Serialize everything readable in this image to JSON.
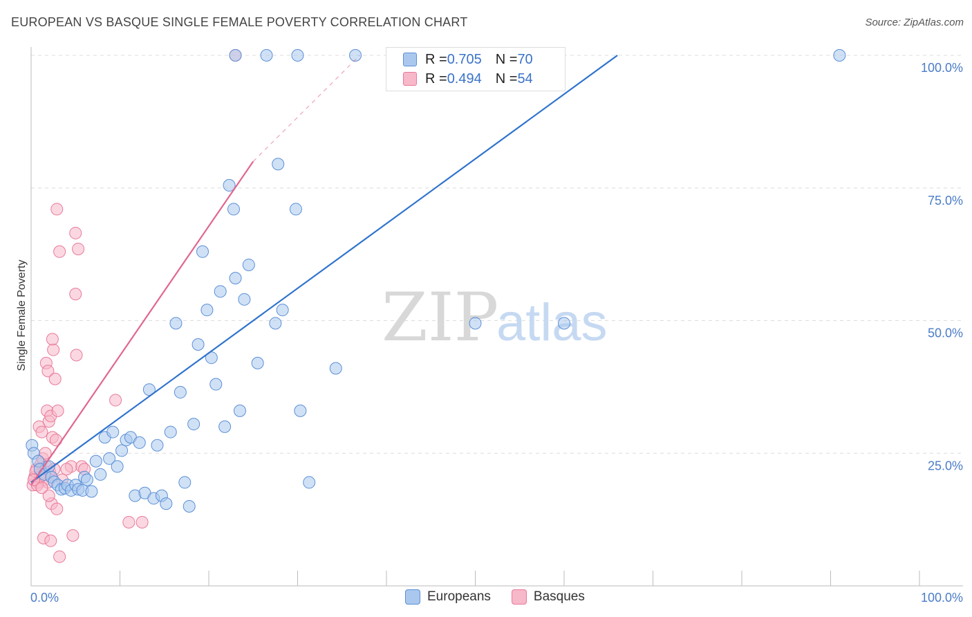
{
  "title": "EUROPEAN VS BASQUE SINGLE FEMALE POVERTY CORRELATION CHART",
  "source": "Source: ZipAtlas.com",
  "watermark": {
    "zip": "ZIP",
    "atlas": "atlas"
  },
  "colors": {
    "europeans_fill": "#aac8ee",
    "europeans_stroke": "#5b8fd6",
    "europeans_line": "#2f73cc",
    "basques_fill": "#f7b8c9",
    "basques_stroke": "#e8799a",
    "basques_line": "#e06690",
    "tick_label": "#4a7cc7",
    "grid": "#dcdcdc"
  },
  "legend": {
    "europeans": {
      "r_label": "R = ",
      "r_value": "0.705",
      "n_label": "N = ",
      "n_value": "70"
    },
    "basques": {
      "r_label": "R = ",
      "r_value": "0.494",
      "n_label": "N = ",
      "n_value": "54"
    }
  },
  "bottom_legend": {
    "europeans": "Europeans",
    "basques": "Basques"
  },
  "chart_data": {
    "type": "scatter",
    "title": "EUROPEAN VS BASQUE SINGLE FEMALE POVERTY CORRELATION CHART",
    "xlabel": "",
    "ylabel": "Single Female Poverty",
    "xlim": [
      0,
      100
    ],
    "ylim": [
      0,
      100
    ],
    "x_tick_labels": [
      "0.0%",
      "100.0%"
    ],
    "y_tick_labels": [
      "25.0%",
      "50.0%",
      "75.0%",
      "100.0%"
    ],
    "y_ticks": [
      25,
      50,
      75,
      100
    ],
    "series": [
      {
        "name": "Europeans",
        "r": 0.705,
        "n": 70,
        "trend": {
          "x0": 0,
          "y0": 19.5,
          "x1": 66,
          "y1": 100
        },
        "points": [
          [
            0.1,
            26.5
          ],
          [
            0.3,
            25.0
          ],
          [
            0.8,
            23.5
          ],
          [
            1.0,
            22.0
          ],
          [
            1.5,
            21.0
          ],
          [
            2.0,
            22.5
          ],
          [
            2.3,
            20.5
          ],
          [
            2.6,
            19.6
          ],
          [
            3.0,
            19.0
          ],
          [
            3.4,
            18.2
          ],
          [
            3.8,
            18.4
          ],
          [
            4.1,
            19.0
          ],
          [
            4.5,
            18.0
          ],
          [
            5.0,
            19.0
          ],
          [
            5.3,
            18.2
          ],
          [
            5.8,
            18.0
          ],
          [
            6.0,
            20.5
          ],
          [
            6.3,
            20.0
          ],
          [
            6.8,
            17.8
          ],
          [
            7.3,
            23.5
          ],
          [
            7.8,
            21.0
          ],
          [
            8.3,
            28.0
          ],
          [
            8.8,
            24.0
          ],
          [
            9.2,
            29.0
          ],
          [
            9.7,
            22.5
          ],
          [
            10.2,
            25.5
          ],
          [
            10.7,
            27.5
          ],
          [
            11.2,
            28.0
          ],
          [
            11.7,
            17.0
          ],
          [
            12.2,
            27.0
          ],
          [
            12.8,
            17.5
          ],
          [
            13.3,
            37.0
          ],
          [
            13.8,
            16.5
          ],
          [
            14.2,
            26.5
          ],
          [
            14.7,
            17.0
          ],
          [
            15.2,
            15.5
          ],
          [
            15.7,
            29.0
          ],
          [
            16.3,
            49.5
          ],
          [
            16.8,
            36.5
          ],
          [
            17.3,
            19.5
          ],
          [
            17.8,
            15.0
          ],
          [
            18.3,
            30.5
          ],
          [
            18.8,
            45.5
          ],
          [
            19.3,
            63.0
          ],
          [
            19.8,
            52.0
          ],
          [
            20.3,
            43.0
          ],
          [
            20.8,
            38.0
          ],
          [
            21.3,
            55.5
          ],
          [
            21.8,
            30.0
          ],
          [
            22.3,
            75.5
          ],
          [
            22.8,
            71.0
          ],
          [
            23.0,
            58.0
          ],
          [
            23.5,
            33.0
          ],
          [
            24.0,
            54.0
          ],
          [
            24.5,
            60.5
          ],
          [
            25.5,
            42.0
          ],
          [
            27.5,
            49.5
          ],
          [
            27.8,
            79.5
          ],
          [
            28.3,
            52.0
          ],
          [
            29.8,
            71.0
          ],
          [
            30.3,
            33.0
          ],
          [
            31.3,
            19.5
          ],
          [
            34.3,
            41.0
          ],
          [
            50.0,
            49.5
          ],
          [
            60.0,
            49.5
          ],
          [
            23.0,
            100
          ],
          [
            26.5,
            100
          ],
          [
            30.0,
            100
          ],
          [
            36.5,
            100
          ],
          [
            91.0,
            100
          ]
        ]
      },
      {
        "name": "Basques",
        "r": 0.494,
        "n": 54,
        "trend": {
          "x0": 0,
          "y0": 19.0,
          "x1": 25,
          "y1": 80.0,
          "dashed_to": {
            "x": 37,
            "y": 100
          }
        },
        "points": [
          [
            0.2,
            19.0
          ],
          [
            0.4,
            20.5
          ],
          [
            0.6,
            22.0
          ],
          [
            0.8,
            19.5
          ],
          [
            1.0,
            21.0
          ],
          [
            1.1,
            23.0
          ],
          [
            1.3,
            24.0
          ],
          [
            1.5,
            20.0
          ],
          [
            1.7,
            22.5
          ],
          [
            1.9,
            19.5
          ],
          [
            2.1,
            21.5
          ],
          [
            2.3,
            20.5
          ],
          [
            0.9,
            30.0
          ],
          [
            1.2,
            29.0
          ],
          [
            1.6,
            25.0
          ],
          [
            1.8,
            33.0
          ],
          [
            2.0,
            31.0
          ],
          [
            2.2,
            32.0
          ],
          [
            2.4,
            28.0
          ],
          [
            2.6,
            22.0
          ],
          [
            1.7,
            42.0
          ],
          [
            1.9,
            40.5
          ],
          [
            2.7,
            39.0
          ],
          [
            2.5,
            44.5
          ],
          [
            2.4,
            46.5
          ],
          [
            3.0,
            33.0
          ],
          [
            2.8,
            27.5
          ],
          [
            3.2,
            63.0
          ],
          [
            2.9,
            71.0
          ],
          [
            5.0,
            66.5
          ],
          [
            5.3,
            63.5
          ],
          [
            5.0,
            55.0
          ],
          [
            5.1,
            43.5
          ],
          [
            2.3,
            15.5
          ],
          [
            2.9,
            14.5
          ],
          [
            1.4,
            9.0
          ],
          [
            2.2,
            8.5
          ],
          [
            3.2,
            5.5
          ],
          [
            4.7,
            9.5
          ],
          [
            4.5,
            22.5
          ],
          [
            5.7,
            22.5
          ],
          [
            6.0,
            22.0
          ],
          [
            9.5,
            35.0
          ],
          [
            11.0,
            12.0
          ],
          [
            12.5,
            12.0
          ],
          [
            0.7,
            19.0
          ],
          [
            1.0,
            20.5
          ],
          [
            0.5,
            21.5
          ],
          [
            2.0,
            17.0
          ],
          [
            3.5,
            20.0
          ],
          [
            4.0,
            22.0
          ],
          [
            1.2,
            18.5
          ],
          [
            23.0,
            100
          ],
          [
            0.3,
            20.0
          ]
        ]
      }
    ]
  }
}
